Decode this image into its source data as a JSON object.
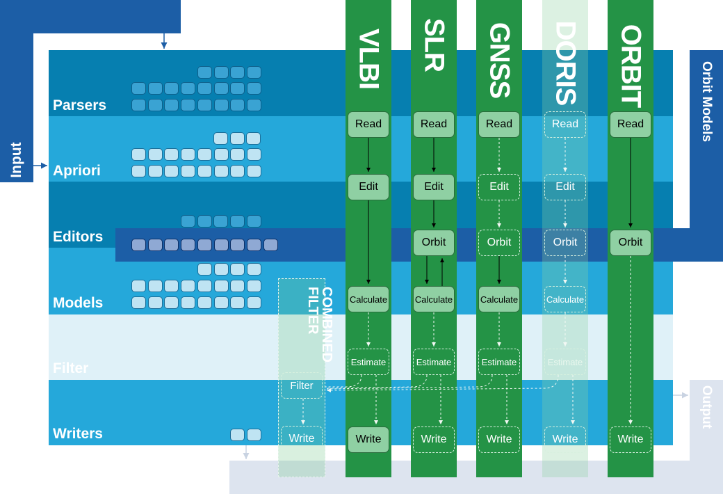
{
  "layers": {
    "parsers": "Parsers",
    "apriori": "Apriori",
    "editors": "Editors",
    "models": "Models",
    "filter": "Filter",
    "writers": "Writers"
  },
  "side": {
    "input": "Input",
    "orbit_models": "Orbit Models",
    "output": "Output",
    "combined_filter": "COMBINED FILTER",
    "filter_box": "Filter",
    "write_box": "Write"
  },
  "pipelines": [
    {
      "name": "VLBI",
      "read": "Read",
      "edit": "Edit",
      "calculate": "Calculate",
      "estimate": "Estimate",
      "write": "Write"
    },
    {
      "name": "SLR",
      "read": "Read",
      "edit": "Edit",
      "orbit": "Orbit",
      "calculate": "Calculate",
      "estimate": "Estimate",
      "write": "Write"
    },
    {
      "name": "GNSS",
      "read": "Read",
      "edit": "Edit",
      "orbit": "Orbit",
      "calculate": "Calculate",
      "estimate": "Estimate",
      "write": "Write"
    },
    {
      "name": "DORIS",
      "read": "Read",
      "edit": "Edit",
      "orbit": "Orbit",
      "calculate": "Calculate",
      "estimate": "Estimate",
      "write": "Write"
    },
    {
      "name": "ORBIT",
      "read": "Read",
      "orbit": "Orbit",
      "write": "Write"
    }
  ]
}
